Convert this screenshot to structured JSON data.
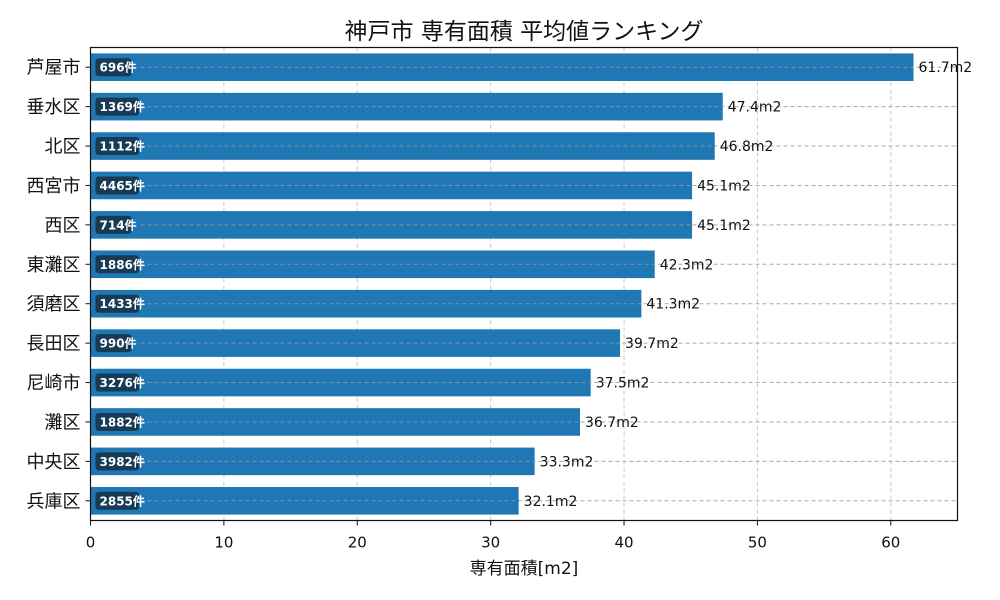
{
  "chart_data": {
    "type": "bar",
    "orientation": "horizontal",
    "title": "神戸市 専有面積 平均値ランキング",
    "xlabel": "専有面積[m2]",
    "ylabel": "",
    "xlim": [
      0,
      65
    ],
    "xticks": [
      0,
      10,
      20,
      30,
      40,
      50,
      60
    ],
    "grid": true,
    "bar_color": "#1f77b4",
    "badge_color": "#173a55",
    "value_suffix": "m2",
    "categories": [
      "芦屋市",
      "垂水区",
      "北区",
      "西宮市",
      "西区",
      "東灘区",
      "須磨区",
      "長田区",
      "尼崎市",
      "灘区",
      "中央区",
      "兵庫区"
    ],
    "values": [
      61.7,
      47.4,
      46.8,
      45.1,
      45.1,
      42.3,
      41.3,
      39.7,
      37.5,
      36.7,
      33.3,
      32.1
    ],
    "value_labels": [
      "61.7m2",
      "47.4m2",
      "46.8m2",
      "45.1m2",
      "45.1m2",
      "42.3m2",
      "41.3m2",
      "39.7m2",
      "37.5m2",
      "36.7m2",
      "33.3m2",
      "32.1m2"
    ],
    "counts": [
      "696件",
      "1369件",
      "1112件",
      "4465件",
      "714件",
      "1886件",
      "1433件",
      "990件",
      "3276件",
      "1882件",
      "3982件",
      "2855件"
    ]
  }
}
